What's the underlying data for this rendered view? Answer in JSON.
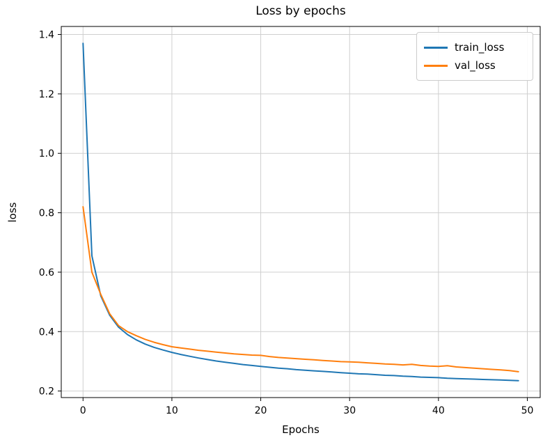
{
  "chart_data": {
    "type": "line",
    "title": "Loss by epochs",
    "xlabel": "Epochs",
    "ylabel": "loss",
    "grid": true,
    "legend_position": "upper right",
    "xticks": [
      0,
      10,
      20,
      30,
      40,
      50
    ],
    "yticks": [
      0.2,
      0.4,
      0.6,
      0.8,
      1.0,
      1.2,
      1.4
    ],
    "xlim": [
      -2.45,
      51.45
    ],
    "ylim": [
      0.178,
      1.427
    ],
    "x": [
      0,
      1,
      2,
      3,
      4,
      5,
      6,
      7,
      8,
      9,
      10,
      11,
      12,
      13,
      14,
      15,
      16,
      17,
      18,
      19,
      20,
      21,
      22,
      23,
      24,
      25,
      26,
      27,
      28,
      29,
      30,
      31,
      32,
      33,
      34,
      35,
      36,
      37,
      38,
      39,
      40,
      41,
      42,
      43,
      44,
      45,
      46,
      47,
      48,
      49
    ],
    "series": [
      {
        "name": "train_loss",
        "color": "#1f77b4",
        "values": [
          1.37,
          0.655,
          0.52,
          0.455,
          0.415,
          0.39,
          0.372,
          0.358,
          0.347,
          0.338,
          0.33,
          0.323,
          0.317,
          0.311,
          0.306,
          0.301,
          0.297,
          0.293,
          0.289,
          0.286,
          0.283,
          0.28,
          0.277,
          0.275,
          0.272,
          0.27,
          0.268,
          0.266,
          0.264,
          0.262,
          0.26,
          0.258,
          0.257,
          0.255,
          0.253,
          0.252,
          0.25,
          0.249,
          0.247,
          0.246,
          0.245,
          0.243,
          0.242,
          0.241,
          0.24,
          0.239,
          0.238,
          0.237,
          0.236,
          0.235
        ]
      },
      {
        "name": "val_loss",
        "color": "#ff7f0e",
        "values": [
          0.82,
          0.6,
          0.525,
          0.46,
          0.42,
          0.4,
          0.386,
          0.374,
          0.364,
          0.356,
          0.349,
          0.345,
          0.341,
          0.337,
          0.334,
          0.331,
          0.328,
          0.325,
          0.323,
          0.321,
          0.32,
          0.316,
          0.313,
          0.311,
          0.309,
          0.307,
          0.305,
          0.303,
          0.301,
          0.299,
          0.298,
          0.297,
          0.295,
          0.293,
          0.291,
          0.29,
          0.288,
          0.29,
          0.286,
          0.284,
          0.283,
          0.285,
          0.281,
          0.279,
          0.277,
          0.275,
          0.273,
          0.271,
          0.269,
          0.265
        ]
      }
    ]
  },
  "colors": {
    "grid": "#cfcfcf",
    "spine": "#000000",
    "background": "#ffffff"
  }
}
